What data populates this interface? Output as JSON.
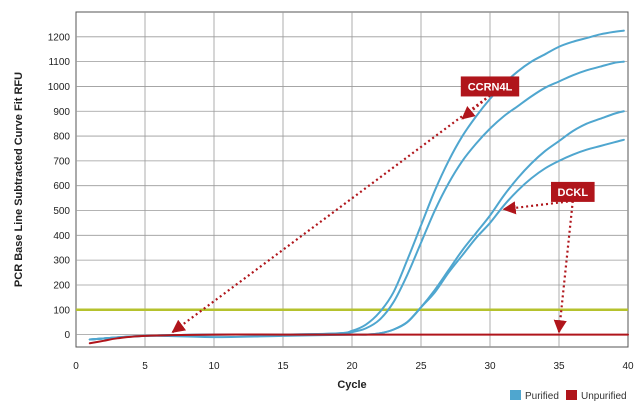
{
  "chart_data": {
    "type": "line",
    "title": "",
    "xlabel": "Cycle",
    "ylabel": "PCR Base Line Subtracted Curve Fit RFU",
    "xlim": [
      0,
      40
    ],
    "ylim": [
      -50,
      1300
    ],
    "xticks": [
      0,
      5,
      10,
      15,
      20,
      25,
      30,
      35,
      40
    ],
    "yticks": [
      0,
      100,
      200,
      300,
      400,
      500,
      600,
      700,
      800,
      900,
      1000,
      1100,
      1200
    ],
    "grid": true,
    "threshold": {
      "y": 100,
      "color": "#b5c22d"
    },
    "legend": {
      "position": "bottom-right",
      "entries": [
        {
          "name": "Purified",
          "color": "#4fa6cf"
        },
        {
          "name": "Unpurified",
          "color": "#b0151b"
        }
      ]
    },
    "series": [
      {
        "name": "Purified",
        "color": "#4fa6cf",
        "curves": [
          {
            "x": [
              1,
              5,
              10,
              15,
              19,
              20,
              21,
              22,
              23,
              24,
              25,
              26,
              27,
              28,
              29,
              30,
              31,
              32,
              33,
              34,
              35,
              36,
              37,
              38,
              39,
              39.7
            ],
            "y": [
              -20,
              -5,
              0,
              0,
              5,
              15,
              40,
              90,
              170,
              300,
              440,
              580,
              700,
              800,
              880,
              950,
              1010,
              1060,
              1100,
              1130,
              1160,
              1180,
              1195,
              1210,
              1220,
              1225
            ]
          },
          {
            "x": [
              1,
              5,
              10,
              15,
              19,
              20,
              21,
              22,
              23,
              24,
              25,
              26,
              27,
              28,
              29,
              30,
              31,
              32,
              33,
              34,
              35,
              36,
              37,
              38,
              39,
              39.7
            ],
            "y": [
              -20,
              -5,
              0,
              0,
              5,
              10,
              25,
              60,
              130,
              240,
              370,
              500,
              610,
              700,
              770,
              830,
              880,
              920,
              960,
              995,
              1020,
              1045,
              1065,
              1080,
              1095,
              1100
            ]
          },
          {
            "x": [
              1,
              5,
              10,
              15,
              20,
              21,
              22,
              23,
              24,
              25,
              26,
              27,
              28,
              29,
              30,
              31,
              32,
              33,
              34,
              35,
              36,
              37,
              38,
              39,
              39.7
            ],
            "y": [
              -20,
              -5,
              0,
              0,
              0,
              0,
              5,
              20,
              50,
              110,
              180,
              260,
              340,
              410,
              480,
              560,
              630,
              690,
              740,
              780,
              820,
              850,
              870,
              890,
              900
            ]
          },
          {
            "x": [
              1,
              5,
              10,
              15,
              20,
              21,
              22,
              23,
              24,
              25,
              26,
              27,
              28,
              29,
              30,
              31,
              32,
              33,
              34,
              35,
              36,
              37,
              38,
              39,
              39.7
            ],
            "y": [
              -20,
              -5,
              -10,
              -5,
              0,
              0,
              5,
              20,
              50,
              110,
              170,
              250,
              320,
              390,
              450,
              520,
              580,
              630,
              670,
              700,
              725,
              745,
              760,
              775,
              785
            ]
          }
        ]
      },
      {
        "name": "Unpurified",
        "color": "#b0151b",
        "curves": [
          {
            "x": [
              1,
              2,
              3,
              5,
              10,
              15,
              20,
              25,
              30,
              35,
              40
            ],
            "y": [
              -35,
              -25,
              -15,
              -5,
              0,
              0,
              0,
              0,
              0,
              0,
              0
            ]
          }
        ]
      }
    ],
    "annotations": [
      {
        "label": "CCRN4L",
        "box_anchor": [
          30,
          1000
        ],
        "targets": [
          [
            7,
            10
          ],
          [
            28,
            870
          ]
        ]
      },
      {
        "label": "DCKL",
        "box_anchor": [
          36,
          575
        ],
        "targets": [
          [
            31,
            505
          ],
          [
            35,
            10
          ]
        ]
      }
    ]
  }
}
